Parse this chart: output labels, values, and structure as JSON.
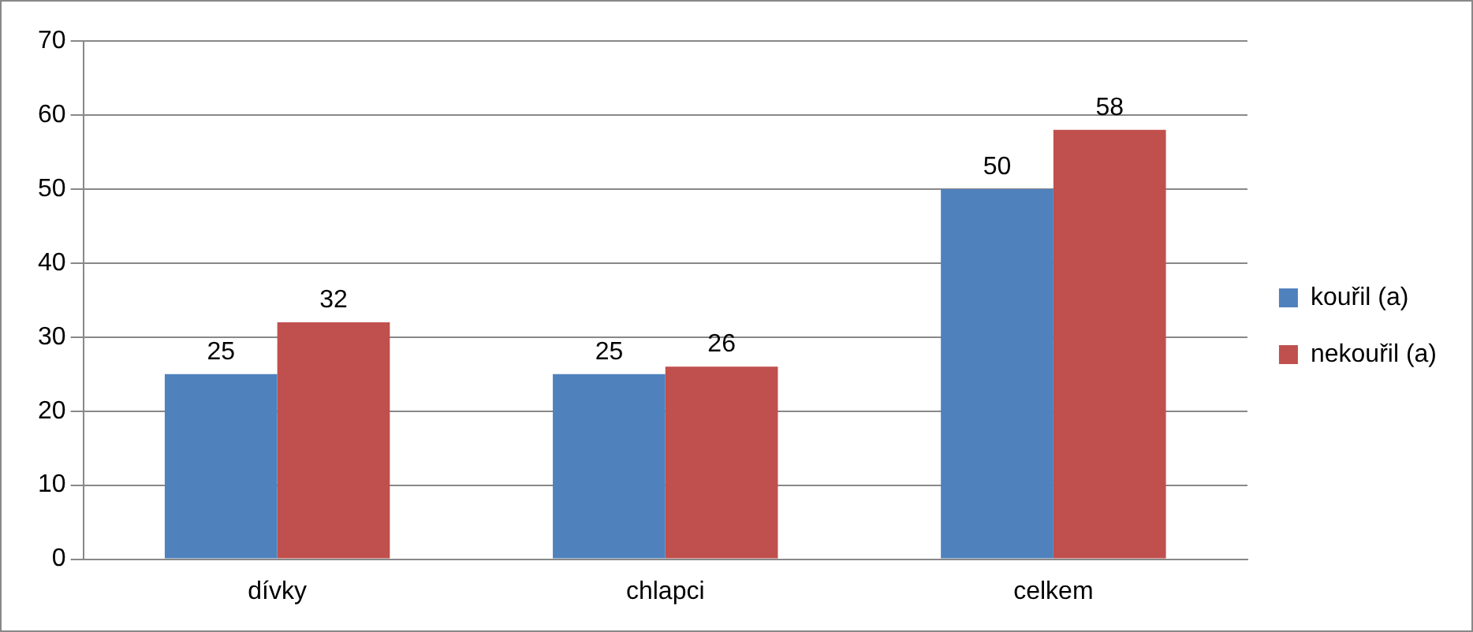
{
  "chart_data": {
    "type": "bar",
    "categories": [
      "dívky",
      "chlapci",
      "celkem"
    ],
    "series": [
      {
        "name": "kouřil (a)",
        "color": "#4f81bd",
        "values": [
          25,
          25,
          50
        ]
      },
      {
        "name": "nekouřil (a)",
        "color": "#c0504d",
        "values": [
          32,
          26,
          58
        ]
      }
    ],
    "ylim": [
      0,
      70
    ],
    "yticks": [
      0,
      10,
      20,
      30,
      40,
      50,
      60,
      70
    ],
    "grid": "y",
    "legend": "right",
    "data_labels": true
  }
}
